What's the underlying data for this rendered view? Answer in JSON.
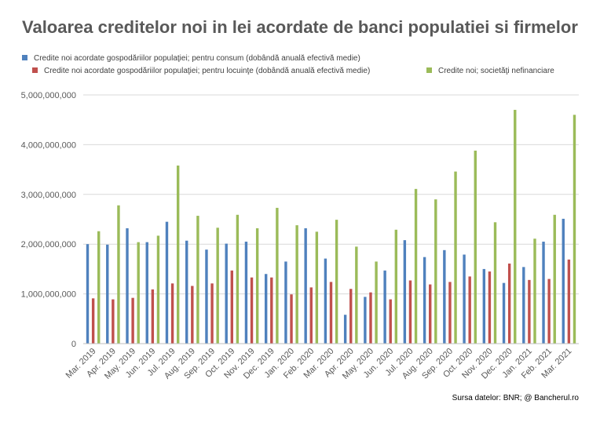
{
  "chart_data": {
    "type": "bar",
    "title": "Valoarea creditelor noi in lei acordate de banci populatiei si firmelor",
    "source": "Sursa datelor: BNR; @ Bancherul.ro",
    "categories": [
      "Mar. 2019",
      "Apr. 2019",
      "May. 2019",
      "Jun. 2019",
      "Jul. 2019",
      "Aug. 2019",
      "Sep. 2019",
      "Oct. 2019",
      "Nov. 2019",
      "Dec. 2019",
      "Jan. 2020",
      "Feb. 2020",
      "Mar. 2020",
      "Apr. 2020",
      "May. 2020",
      "Jun. 2020",
      "Jul. 2020",
      "Aug. 2020",
      "Sep. 2020",
      "Oct. 2020",
      "Nov. 2020",
      "Dec. 2020",
      "Jan. 2021",
      "Feb. 2021",
      "Mar. 2021"
    ],
    "series": [
      {
        "name": "Credite noi acordate gospodăriilor populaţiei; pentru consum (dobândă anuală efectivă medie)",
        "color": "#4f81bd",
        "values": [
          2000000000,
          1990000000,
          2320000000,
          2040000000,
          2450000000,
          2070000000,
          1890000000,
          2010000000,
          2050000000,
          1400000000,
          1650000000,
          2320000000,
          1710000000,
          580000000,
          940000000,
          1470000000,
          2080000000,
          1740000000,
          1880000000,
          1790000000,
          1500000000,
          1220000000,
          1540000000,
          2050000000,
          2510000000
        ]
      },
      {
        "name": "Credite noi acordate gospodăriilor populaţiei; pentru locuinţe (dobândă anuală efectivă medie)",
        "color": "#c0504d",
        "values": [
          910000000,
          890000000,
          920000000,
          1090000000,
          1210000000,
          1160000000,
          1210000000,
          1470000000,
          1330000000,
          1330000000,
          990000000,
          1130000000,
          1240000000,
          1100000000,
          1030000000,
          890000000,
          1270000000,
          1190000000,
          1240000000,
          1350000000,
          1450000000,
          1610000000,
          1280000000,
          1300000000,
          1690000000
        ]
      },
      {
        "name": "Credite noi; societăţi nefinanciare",
        "color": "#9bbb59",
        "values": [
          2260000000,
          2780000000,
          2040000000,
          2170000000,
          3580000000,
          2570000000,
          2330000000,
          2590000000,
          2320000000,
          2730000000,
          2380000000,
          2250000000,
          2490000000,
          1950000000,
          1650000000,
          2290000000,
          3110000000,
          2900000000,
          3460000000,
          3880000000,
          2440000000,
          4700000000,
          2110000000,
          2590000000,
          4600000000
        ]
      }
    ],
    "ylim": [
      0,
      5000000000
    ],
    "yticks": [
      0,
      1000000000,
      2000000000,
      3000000000,
      4000000000,
      5000000000
    ],
    "ytick_labels": [
      "0",
      "1,000,000,000",
      "2,000,000,000",
      "3,000,000,000",
      "4,000,000,000",
      "5,000,000,000"
    ],
    "grid": true,
    "legend": "top"
  }
}
